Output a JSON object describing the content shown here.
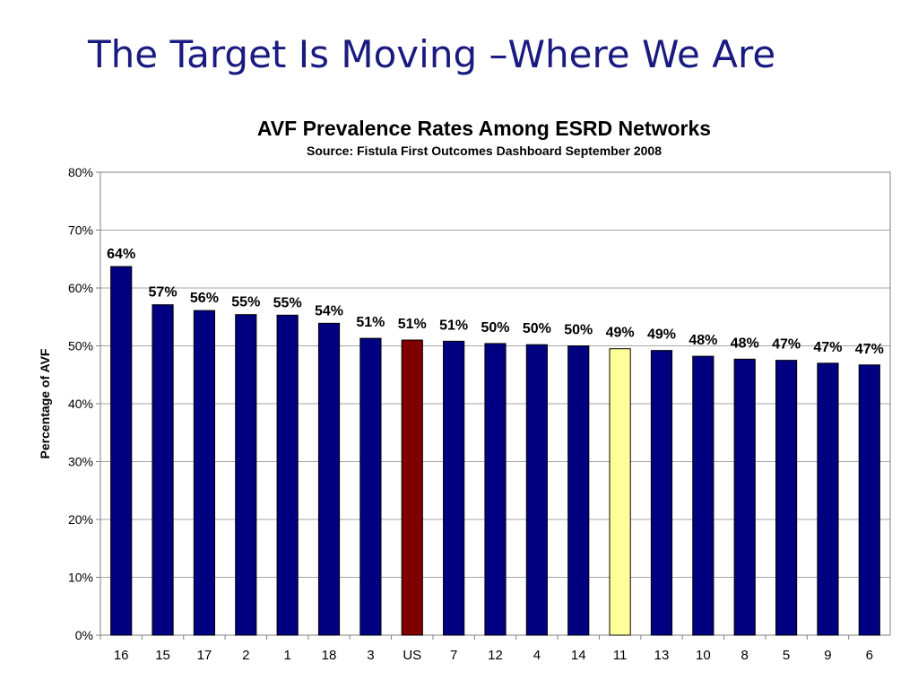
{
  "slide": {
    "title": "The Target Is Moving –Where We Are"
  },
  "colors": {
    "title": "#1a1a80",
    "default_bar": "#000080",
    "us_bar": "#800000",
    "network_11_bar": "#ffff99",
    "gridline": "#a6a6a6"
  },
  "chart_data": {
    "type": "bar",
    "title": "AVF Prevalence Rates Among ESRD Networks",
    "subtitle": "Source:  Fistula First Outcomes Dashboard September 2008",
    "xlabel": "",
    "ylabel": "Percentage of AVF",
    "ylim": [
      0,
      80
    ],
    "yticks": [
      "0%",
      "10%",
      "20%",
      "30%",
      "40%",
      "50%",
      "60%",
      "70%",
      "80%"
    ],
    "grid": true,
    "legend": "none",
    "categories": [
      "16",
      "15",
      "17",
      "2",
      "1",
      "18",
      "3",
      "US",
      "7",
      "12",
      "4",
      "14",
      "11",
      "13",
      "10",
      "8",
      "5",
      "9",
      "6"
    ],
    "values": [
      63.7,
      57.1,
      56.1,
      55.4,
      55.3,
      53.9,
      51.3,
      51.0,
      50.8,
      50.4,
      50.2,
      50.0,
      49.5,
      49.2,
      48.2,
      47.7,
      47.5,
      47.0,
      46.7
    ],
    "labels": [
      "64%",
      "57%",
      "56%",
      "55%",
      "55%",
      "54%",
      "51%",
      "51%",
      "51%",
      "50%",
      "50%",
      "50%",
      "49%",
      "49%",
      "48%",
      "48%",
      "47%",
      "47%",
      "47%"
    ],
    "bar_colors": [
      "#000080",
      "#000080",
      "#000080",
      "#000080",
      "#000080",
      "#000080",
      "#000080",
      "#800000",
      "#000080",
      "#000080",
      "#000080",
      "#000080",
      "#ffff99",
      "#000080",
      "#000080",
      "#000080",
      "#000080",
      "#000080",
      "#000080"
    ]
  }
}
